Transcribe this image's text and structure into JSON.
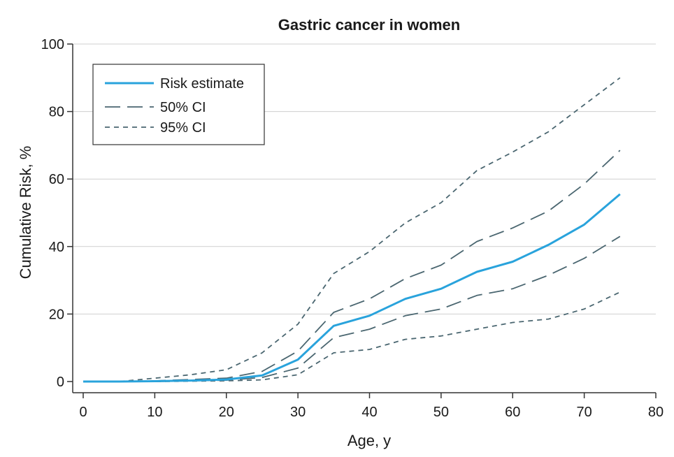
{
  "chart_data": {
    "type": "line",
    "title": "Gastric cancer in women",
    "xlabel": "Age, y",
    "ylabel": "Cumulative Risk, %",
    "xlim": [
      0,
      80
    ],
    "ylim": [
      0,
      100
    ],
    "xticks": [
      0,
      10,
      20,
      30,
      40,
      50,
      60,
      70,
      80
    ],
    "yticks": [
      0,
      20,
      40,
      60,
      80,
      100
    ],
    "grid": "horizontal",
    "legend_position": "top-left",
    "x": [
      0,
      5,
      10,
      15,
      20,
      25,
      30,
      35,
      40,
      45,
      50,
      55,
      60,
      65,
      70,
      75
    ],
    "series": [
      {
        "name": "Risk estimate",
        "style": "solid",
        "color": "#29a3dc",
        "values": [
          0,
          0,
          0.1,
          0.3,
          0.6,
          1.8,
          6.5,
          16.5,
          19.5,
          24.5,
          27.5,
          32.5,
          35.5,
          40.5,
          46.5,
          55.5
        ]
      },
      {
        "name": "50% CI",
        "style": "dashed",
        "color": "#4a6670",
        "values": [
          0,
          0,
          0.2,
          0.6,
          1.0,
          3.0,
          9.0,
          20.5,
          24.5,
          30.5,
          34.5,
          41.5,
          45.5,
          50.5,
          58.5,
          68.5
        ],
        "lower_values": [
          0,
          0,
          0,
          0.2,
          0.4,
          1.2,
          4.0,
          13.0,
          15.5,
          19.5,
          21.5,
          25.5,
          27.5,
          31.5,
          36.5,
          43.0
        ]
      },
      {
        "name": "95% CI",
        "style": "dotted",
        "color": "#4a6670",
        "values": [
          0,
          0,
          1.0,
          2.0,
          3.5,
          8.5,
          17.0,
          32.0,
          38.5,
          47.0,
          53.0,
          62.5,
          68.0,
          74.0,
          82.0,
          90.0
        ],
        "lower_values": [
          0,
          0,
          0,
          0.1,
          0.2,
          0.5,
          2.0,
          8.5,
          9.5,
          12.5,
          13.5,
          15.5,
          17.5,
          18.5,
          21.5,
          26.5
        ]
      }
    ]
  }
}
